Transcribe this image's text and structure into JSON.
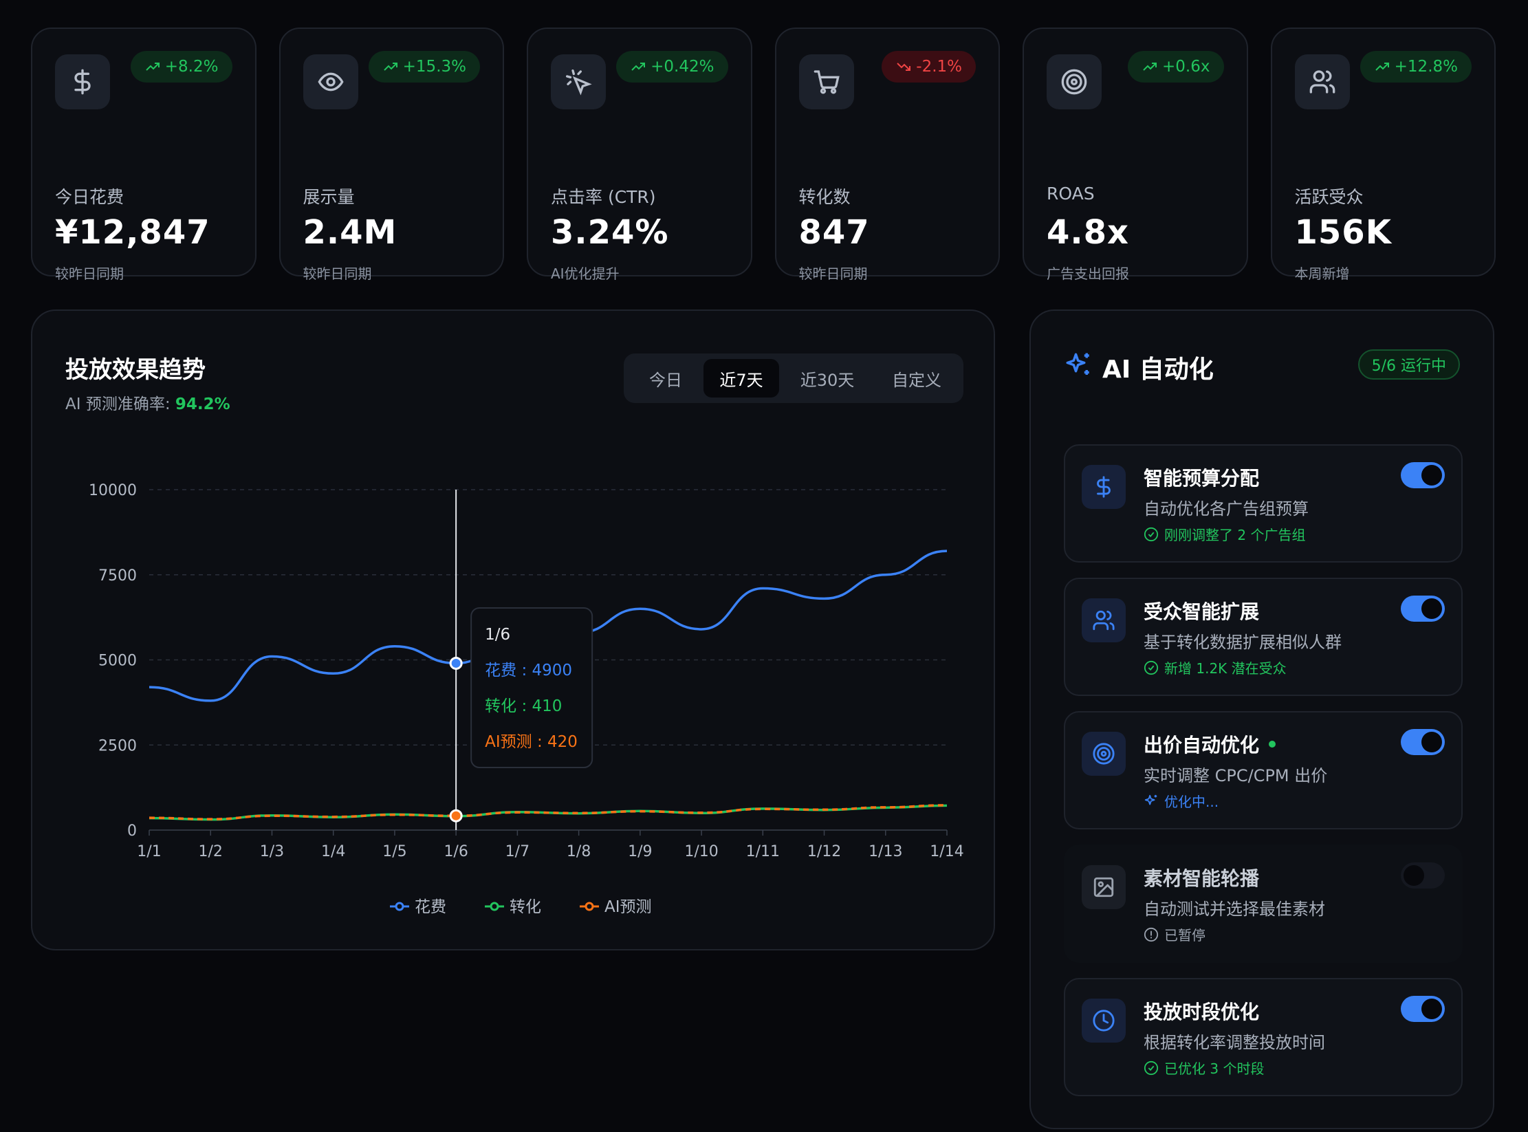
{
  "stats": [
    {
      "icon": "dollar-icon",
      "badge": "+8.2%",
      "trend": "up",
      "label": "今日花费",
      "value": "¥12,847",
      "sub": "较昨日同期"
    },
    {
      "icon": "eye-icon",
      "badge": "+15.3%",
      "trend": "up",
      "label": "展示量",
      "value": "2.4M",
      "sub": "较昨日同期"
    },
    {
      "icon": "cursor-click-icon",
      "badge": "+0.42%",
      "trend": "up",
      "label": "点击率 (CTR)",
      "value": "3.24%",
      "sub": "AI优化提升"
    },
    {
      "icon": "cart-icon",
      "badge": "-2.1%",
      "trend": "down",
      "label": "转化数",
      "value": "847",
      "sub": "较昨日同期"
    },
    {
      "icon": "target-icon",
      "badge": "+0.6x",
      "trend": "up",
      "label": "ROAS",
      "value": "4.8x",
      "sub": "广告支出回报"
    },
    {
      "icon": "users-icon",
      "badge": "+12.8%",
      "trend": "up",
      "label": "活跃受众",
      "value": "156K",
      "sub": "本周新增"
    }
  ],
  "trend_panel": {
    "title": "投放效果趋势",
    "accuracy_label": "AI 预测准确率: ",
    "accuracy_value": "94.2%",
    "tabs": [
      "今日",
      "近7天",
      "近30天",
      "自定义"
    ],
    "active_tab": "近7天"
  },
  "chart_data": {
    "type": "line",
    "categories": [
      "1/1",
      "1/2",
      "1/3",
      "1/4",
      "1/5",
      "1/6",
      "1/7",
      "1/8",
      "1/9",
      "1/10",
      "1/11",
      "1/12",
      "1/13",
      "1/14"
    ],
    "ylim": [
      0,
      10000
    ],
    "yticks": [
      "0",
      "2500",
      "5000",
      "7500",
      "10000"
    ],
    "grid": true,
    "legend_position": "bottom",
    "series": [
      {
        "name": "花费",
        "color": "#3b82f6",
        "values": [
          4200,
          3800,
          5100,
          4600,
          5400,
          4900,
          5600,
          5800,
          6500,
          5900,
          7100,
          6800,
          7500,
          8200
        ]
      },
      {
        "name": "转化",
        "color": "#22c55e",
        "values": [
          350,
          310,
          430,
          380,
          460,
          410,
          530,
          490,
          560,
          500,
          630,
          590,
          660,
          720
        ]
      },
      {
        "name": "AI预测",
        "color": "#f97316",
        "values": [
          360,
          320,
          420,
          390,
          450,
          420,
          520,
          500,
          550,
          510,
          620,
          600,
          670,
          730
        ]
      }
    ],
    "tooltip": {
      "category": "1/6",
      "rows": [
        "花费 : 4900",
        "转化 : 410",
        "AI预测 : 420"
      ]
    }
  },
  "ai_panel": {
    "title": "AI 自动化",
    "running": "5/6 运行中",
    "items": [
      {
        "icon": "dollar-icon",
        "name": "智能预算分配",
        "desc": "自动优化各广告组预算",
        "status": "刚刚调整了 2 个广告组",
        "state": "ok",
        "enabled": true,
        "live": false
      },
      {
        "icon": "users-icon",
        "name": "受众智能扩展",
        "desc": "基于转化数据扩展相似人群",
        "status": "新增 1.2K 潜在受众",
        "state": "ok",
        "enabled": true,
        "live": false
      },
      {
        "icon": "target-icon",
        "name": "出价自动优化",
        "desc": "实时调整 CPC/CPM 出价",
        "status": "优化中...",
        "state": "run",
        "enabled": true,
        "live": true
      },
      {
        "icon": "image-icon",
        "name": "素材智能轮播",
        "desc": "自动测试并选择最佳素材",
        "status": "已暂停",
        "state": "paused",
        "enabled": false,
        "live": false
      },
      {
        "icon": "clock-icon",
        "name": "投放时段优化",
        "desc": "根据转化率调整投放时间",
        "status": "已优化 3 个时段",
        "state": "ok",
        "enabled": true,
        "live": false
      }
    ]
  }
}
